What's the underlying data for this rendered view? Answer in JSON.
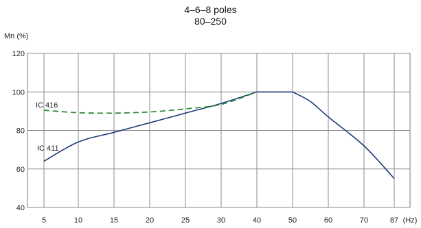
{
  "chart_data": {
    "type": "line",
    "title_lines": [
      "4–6–8 poles",
      "80–250"
    ],
    "ylabel": "Mn (%)",
    "x_unit_label": "(Hz)",
    "x_ticks": [
      5,
      10,
      15,
      20,
      25,
      30,
      40,
      50,
      60,
      70,
      87
    ],
    "y_ticks": [
      40,
      60,
      80,
      100,
      120
    ],
    "ylim": [
      40,
      120
    ],
    "grid": true,
    "series": [
      {
        "name": "IC 411",
        "color": "#1f3a7a",
        "style": "solid",
        "x": [
          5,
          10,
          15,
          20,
          25,
          30,
          40,
          50,
          55,
          60,
          70,
          87
        ],
        "y": [
          64,
          74,
          79,
          84,
          89,
          94,
          100,
          100,
          95,
          87,
          72,
          55
        ]
      },
      {
        "name": "IC 416",
        "color": "#2e8b3a",
        "style": "dashed",
        "x": [
          5,
          10,
          15,
          20,
          25,
          30,
          40
        ],
        "y": [
          90.5,
          89.2,
          89,
          89.6,
          91.2,
          93.5,
          100
        ]
      }
    ]
  }
}
